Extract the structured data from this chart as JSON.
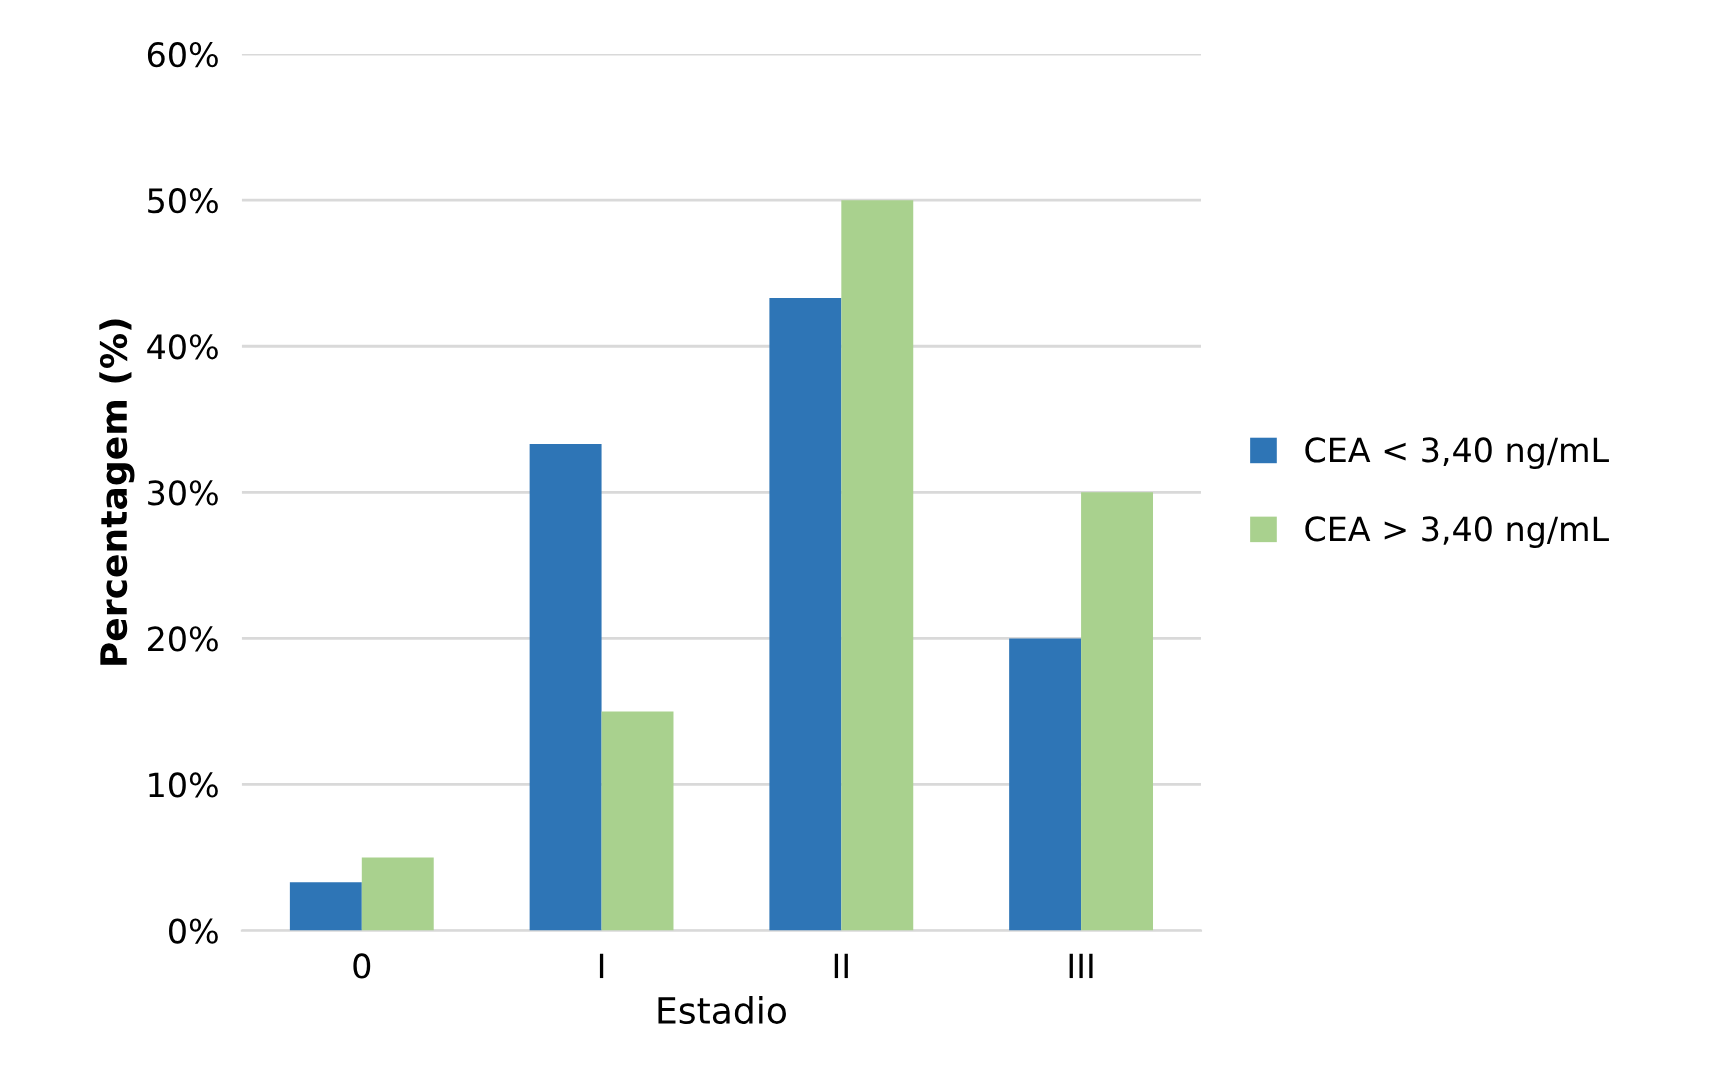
{
  "chart_data": {
    "type": "bar",
    "xlabel": "Estadio",
    "ylabel": "Percentagem (%)",
    "categories": [
      "0",
      "I",
      "II",
      "III"
    ],
    "series": [
      {
        "name": "CEA < 3,40 ng/mL",
        "color": "#2e75b6",
        "values": [
          3.3,
          33.3,
          43.3,
          20
        ]
      },
      {
        "name": "CEA > 3,40 ng/mL",
        "color": "#a9d18e",
        "values": [
          5,
          15,
          50,
          30
        ]
      }
    ],
    "ylim": [
      0,
      60
    ],
    "yticks": [
      {
        "value": 0,
        "label": "0%"
      },
      {
        "value": 10,
        "label": "10%"
      },
      {
        "value": 20,
        "label": "20%"
      },
      {
        "value": 30,
        "label": "30%"
      },
      {
        "value": 40,
        "label": "40%"
      },
      {
        "value": 50,
        "label": "50%"
      },
      {
        "value": 60,
        "label": "60%"
      }
    ],
    "grid": "y",
    "legend": "right"
  }
}
